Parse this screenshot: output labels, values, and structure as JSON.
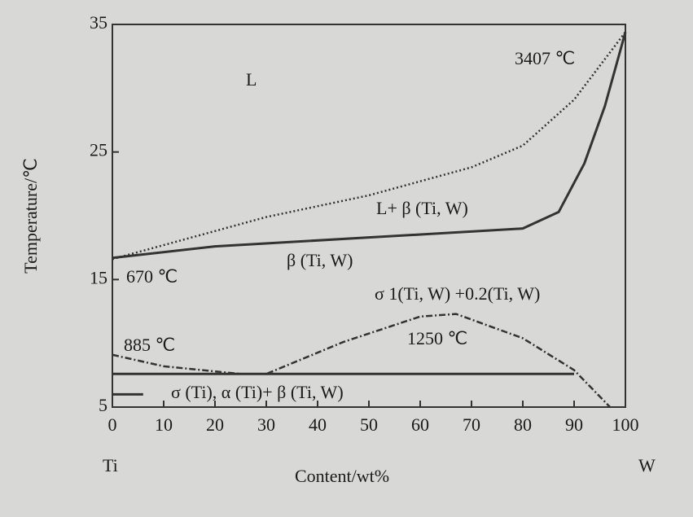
{
  "chart_data": {
    "type": "line",
    "x_label": "Content/wt%",
    "y_label": "Temperature/℃",
    "xlim": [
      0,
      100
    ],
    "ylim": [
      5,
      35
    ],
    "xticks": [
      0,
      10,
      20,
      30,
      40,
      50,
      60,
      70,
      80,
      90,
      100
    ],
    "yticks": [
      5,
      15,
      25,
      35
    ],
    "series": [
      {
        "color": "#333333",
        "style": "dotted",
        "x": [
          0,
          30,
          50,
          70,
          80,
          90,
          100
        ],
        "values": [
          16.6,
          19.9,
          21.6,
          23.8,
          25.5,
          29.1,
          34.4
        ]
      },
      {
        "color": "#333333",
        "style": "solid",
        "x": [
          0,
          20,
          50,
          80,
          87,
          92,
          96,
          100
        ],
        "values": [
          16.7,
          17.6,
          18.3,
          19.0,
          20.3,
          24.1,
          28.6,
          34.4
        ]
      },
      {
        "color": "#333333",
        "style": "dashdot",
        "x": [
          0,
          10,
          25,
          30,
          45,
          60,
          67,
          80,
          90,
          97
        ],
        "values": [
          9.1,
          8.2,
          7.6,
          7.6,
          10.1,
          12.1,
          12.3,
          10.4,
          7.9,
          5
        ]
      },
      {
        "color": "#333333",
        "style": "solid",
        "x": [
          0,
          90
        ],
        "values": [
          7.6,
          7.6
        ]
      },
      {
        "color": "#333333",
        "style": "solid",
        "x": [
          0,
          6
        ],
        "values": [
          6,
          6
        ]
      }
    ],
    "annotations": [
      "L",
      "3407 ℃",
      "L+ β (Ti, W)",
      "β (Ti, W)",
      "670 ℃",
      "σ 1(Ti, W) +0.2(Ti, W)",
      "885 ℃",
      "1250 ℃",
      "σ (Ti),  α (Ti)+ β (Ti, W)",
      "Ti",
      "W"
    ]
  }
}
